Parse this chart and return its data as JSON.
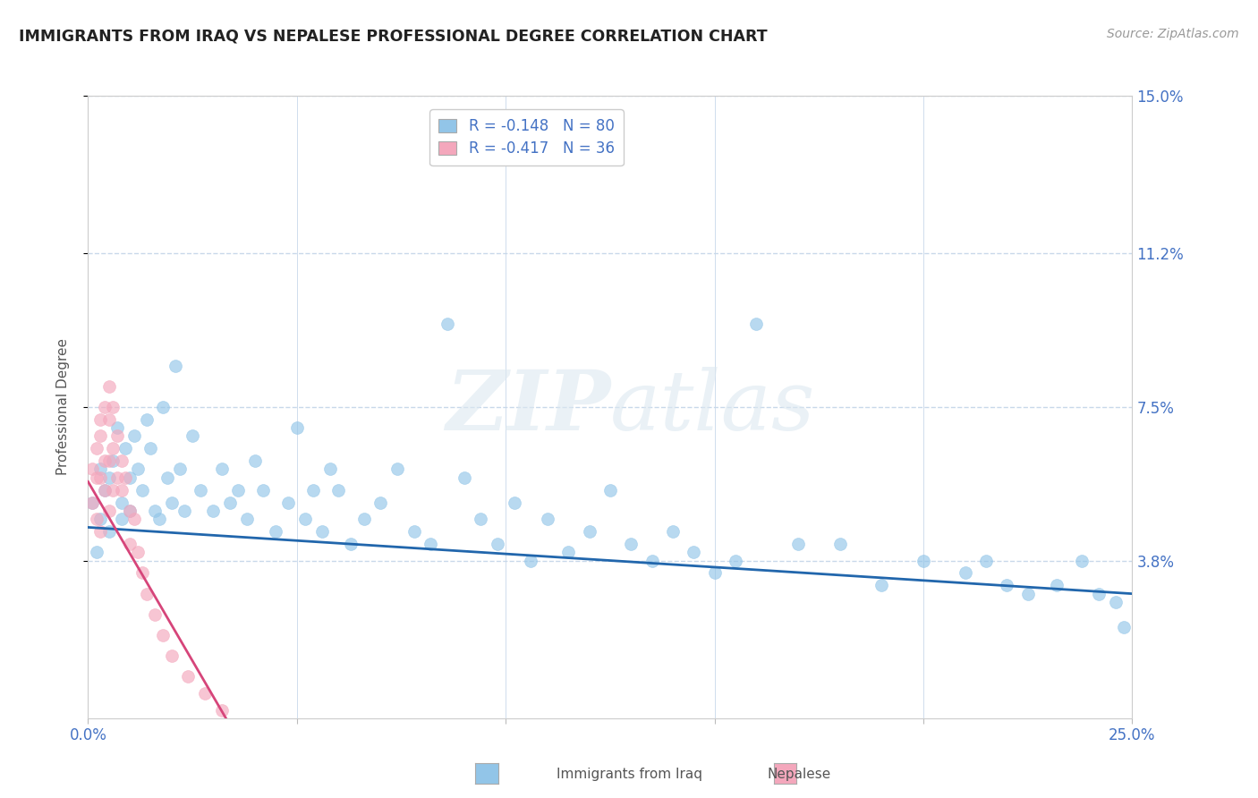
{
  "title": "IMMIGRANTS FROM IRAQ VS NEPALESE PROFESSIONAL DEGREE CORRELATION CHART",
  "source": "Source: ZipAtlas.com",
  "ylabel": "Professional Degree",
  "xlim": [
    0.0,
    0.25
  ],
  "ylim": [
    0.0,
    0.15
  ],
  "ytick_labels": [
    "3.8%",
    "7.5%",
    "11.2%",
    "15.0%"
  ],
  "ytick_vals": [
    0.038,
    0.075,
    0.112,
    0.15
  ],
  "blue_R": -0.148,
  "blue_N": 80,
  "pink_R": -0.417,
  "pink_N": 36,
  "blue_color": "#92c5e8",
  "pink_color": "#f4a7bc",
  "blue_line_color": "#2166ac",
  "pink_line_color": "#d6457a",
  "legend_blue_label": "Immigrants from Iraq",
  "legend_pink_label": "Nepalese",
  "watermark_zip": "ZIP",
  "watermark_atlas": "atlas",
  "background_color": "#ffffff",
  "grid_color": "#c8d8ea",
  "right_label_color": "#4472c4",
  "title_color": "#222222",
  "blue_line_y0": 0.046,
  "blue_line_y1": 0.03,
  "pink_line_x0": 0.0,
  "pink_line_y0": 0.057,
  "pink_line_x1": 0.033,
  "pink_line_y1": 0.0,
  "blue_scatter_x": [
    0.001,
    0.002,
    0.003,
    0.003,
    0.004,
    0.005,
    0.005,
    0.006,
    0.007,
    0.008,
    0.008,
    0.009,
    0.01,
    0.01,
    0.011,
    0.012,
    0.013,
    0.014,
    0.015,
    0.016,
    0.017,
    0.018,
    0.019,
    0.02,
    0.021,
    0.022,
    0.023,
    0.025,
    0.027,
    0.03,
    0.032,
    0.034,
    0.036,
    0.038,
    0.04,
    0.042,
    0.045,
    0.048,
    0.05,
    0.052,
    0.054,
    0.056,
    0.058,
    0.06,
    0.063,
    0.066,
    0.07,
    0.074,
    0.078,
    0.082,
    0.086,
    0.09,
    0.094,
    0.098,
    0.102,
    0.106,
    0.11,
    0.115,
    0.12,
    0.125,
    0.13,
    0.135,
    0.14,
    0.145,
    0.15,
    0.155,
    0.16,
    0.17,
    0.18,
    0.19,
    0.2,
    0.21,
    0.215,
    0.22,
    0.225,
    0.232,
    0.238,
    0.242,
    0.246,
    0.248
  ],
  "blue_scatter_y": [
    0.052,
    0.04,
    0.048,
    0.06,
    0.055,
    0.045,
    0.058,
    0.062,
    0.07,
    0.052,
    0.048,
    0.065,
    0.05,
    0.058,
    0.068,
    0.06,
    0.055,
    0.072,
    0.065,
    0.05,
    0.048,
    0.075,
    0.058,
    0.052,
    0.085,
    0.06,
    0.05,
    0.068,
    0.055,
    0.05,
    0.06,
    0.052,
    0.055,
    0.048,
    0.062,
    0.055,
    0.045,
    0.052,
    0.07,
    0.048,
    0.055,
    0.045,
    0.06,
    0.055,
    0.042,
    0.048,
    0.052,
    0.06,
    0.045,
    0.042,
    0.095,
    0.058,
    0.048,
    0.042,
    0.052,
    0.038,
    0.048,
    0.04,
    0.045,
    0.055,
    0.042,
    0.038,
    0.045,
    0.04,
    0.035,
    0.038,
    0.095,
    0.042,
    0.042,
    0.032,
    0.038,
    0.035,
    0.038,
    0.032,
    0.03,
    0.032,
    0.038,
    0.03,
    0.028,
    0.022
  ],
  "pink_scatter_x": [
    0.001,
    0.001,
    0.002,
    0.002,
    0.002,
    0.003,
    0.003,
    0.003,
    0.003,
    0.004,
    0.004,
    0.004,
    0.005,
    0.005,
    0.005,
    0.005,
    0.006,
    0.006,
    0.006,
    0.007,
    0.007,
    0.008,
    0.008,
    0.009,
    0.01,
    0.01,
    0.011,
    0.012,
    0.013,
    0.014,
    0.016,
    0.018,
    0.02,
    0.024,
    0.028,
    0.032
  ],
  "pink_scatter_y": [
    0.052,
    0.06,
    0.058,
    0.065,
    0.048,
    0.068,
    0.072,
    0.058,
    0.045,
    0.075,
    0.062,
    0.055,
    0.08,
    0.072,
    0.062,
    0.05,
    0.075,
    0.065,
    0.055,
    0.068,
    0.058,
    0.062,
    0.055,
    0.058,
    0.05,
    0.042,
    0.048,
    0.04,
    0.035,
    0.03,
    0.025,
    0.02,
    0.015,
    0.01,
    0.006,
    0.002
  ]
}
